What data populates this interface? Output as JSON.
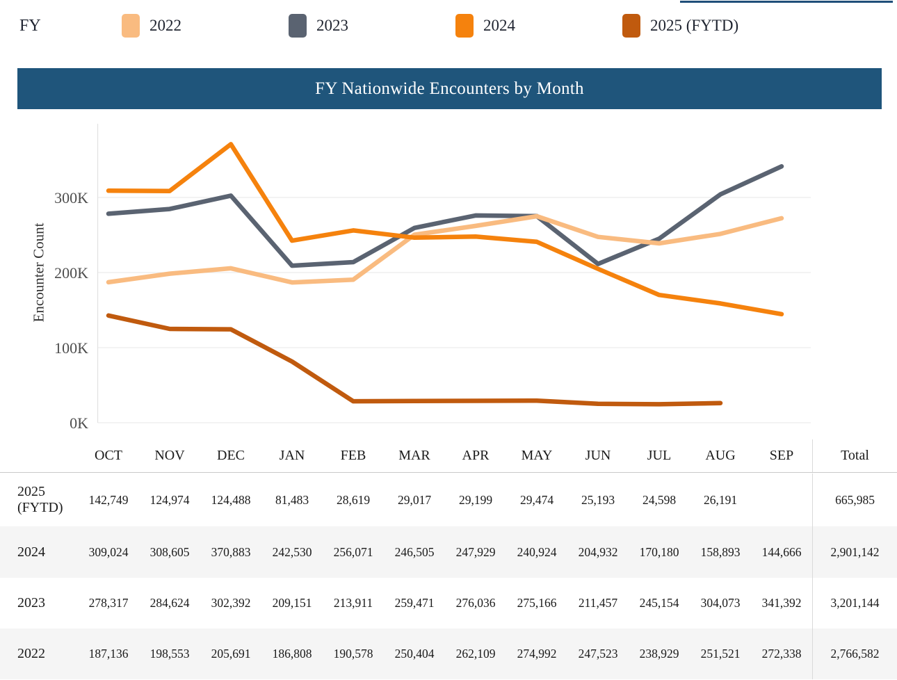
{
  "top_accent": {
    "color": "#1F4E79"
  },
  "legend": {
    "label": "FY",
    "items": [
      {
        "label": "2022",
        "color": "#F9BB80"
      },
      {
        "label": "2023",
        "color": "#5A6371"
      },
      {
        "label": "2024",
        "color": "#F5820D"
      },
      {
        "label": "2025 (FYTD)",
        "color": "#C05A0E"
      }
    ]
  },
  "title_bar": {
    "title": "FY Nationwide Encounters by Month"
  },
  "chart_data": {
    "type": "line",
    "title": "FY Nationwide Encounters by Month",
    "xlabel": "",
    "ylabel": "Encounter Count",
    "categories": [
      "OCT",
      "NOV",
      "DEC",
      "JAN",
      "FEB",
      "MAR",
      "APR",
      "MAY",
      "JUN",
      "JUL",
      "AUG",
      "SEP"
    ],
    "ylim": [
      0,
      400000
    ],
    "grid": true,
    "legend_position": "top",
    "yticks": [
      {
        "label": "0K",
        "value": 0
      },
      {
        "label": "100K",
        "value": 100000
      },
      {
        "label": "200K",
        "value": 200000
      },
      {
        "label": "300K",
        "value": 300000
      }
    ],
    "series": [
      {
        "name": "2022",
        "color": "#F9BB80",
        "values": [
          187136,
          198553,
          205691,
          186808,
          190578,
          250404,
          262109,
          274992,
          247523,
          238929,
          251521,
          272338
        ],
        "total": 2766582
      },
      {
        "name": "2023",
        "color": "#5A6371",
        "values": [
          278317,
          284624,
          302392,
          209151,
          213911,
          259471,
          276036,
          275166,
          211457,
          245154,
          304073,
          341392
        ],
        "total": 3201144
      },
      {
        "name": "2024",
        "color": "#F5820D",
        "values": [
          309024,
          308605,
          370883,
          242530,
          256071,
          246505,
          247929,
          240924,
          204932,
          170180,
          158893,
          144666
        ],
        "total": 2901142
      },
      {
        "name": "2025 (FYTD)",
        "color": "#C05A0E",
        "values": [
          142749,
          124974,
          124488,
          81483,
          28619,
          29017,
          29199,
          29474,
          25193,
          24598,
          26191,
          null
        ],
        "total": 665985
      }
    ]
  },
  "table": {
    "total_header": "Total",
    "row_order": [
      "2025 (FYTD)",
      "2024",
      "2023",
      "2022"
    ]
  }
}
